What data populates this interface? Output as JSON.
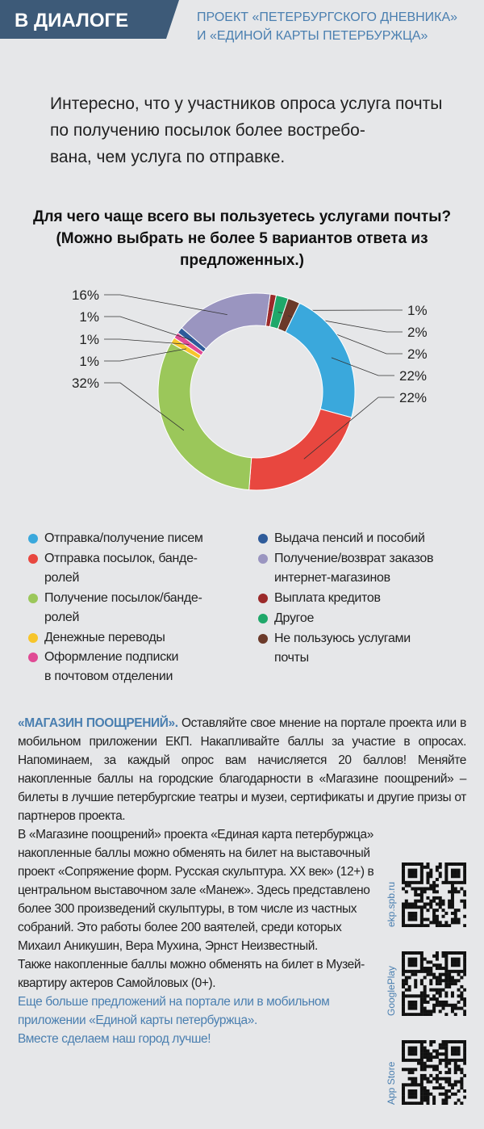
{
  "header": {
    "badge": "В ДИАЛОГЕ",
    "project": "ПРОЕКТ «ПЕТЕРБУРГСКОГО ДНЕВНИКА»\nИ «ЕДИНОЙ КАРТЫ ПЕТЕРБУРЖЦА»"
  },
  "intro": "Интересно, что у участников опроса услуга почты по получению посылок более востребо-\nвана, чем услуга по отправке.",
  "chart_data": {
    "type": "donut",
    "title": "Для чего чаще всего вы пользуетесь услугами почты? (Можно выбрать не более 5 вариантов ответа из предложенных.)",
    "categories": [
      "Отправка/получение писем",
      "Отправка посылок, банде-\nролей",
      "Получение посылок/банде-\nролей",
      "Денежные переводы",
      "Оформление подписки\nв почтовом отделении",
      "Выдача пенсий и пособий",
      "Получение/возврат заказов\nинтернет-магазинов",
      "Выплата кредитов",
      "Другое",
      "Не пользуюсь услугами\nпочты"
    ],
    "values": [
      22,
      22,
      32,
      1,
      1,
      1,
      16,
      1,
      2,
      2
    ],
    "value_labels": [
      "22%",
      "22%",
      "32%",
      "1%",
      "1%",
      "1%",
      "16%",
      "1%",
      "2%",
      "2%"
    ],
    "colors": [
      "#3aa8dc",
      "#e8473f",
      "#9bc75a",
      "#f7c52b",
      "#e04a94",
      "#2e5b9a",
      "#9a95c0",
      "#9b2a2a",
      "#1fa86a",
      "#6b3a2a"
    ]
  },
  "promo": {
    "heading": "«МАГАЗИН ПООЩРЕНИЙ».",
    "paragraphs": [
      "Оставляйте свое мнение на портале проекта или в мобильном приложении ЕКП. Накапливайте баллы за участие в опросах. Напоминаем, за каждый опрос вам начисляется 20 баллов! Меняйте накопленные баллы на городские благодарности в «Магазине поощрений» – билеты в лучшие петербургские театры и музеи, сертификаты и другие призы от партнеров проекта.",
      "В «Магазине поощрений» проекта «Единая карта петербуржца» накопленные баллы можно обменять на билет на выставочный проект «Сопряжение форм. Русская скульптура. XX век» (12+) в центральном выставочном зале «Манеж». Здесь представлено более 300 произведений скульптуры, в том числе из частных собраний. Это работы более 200 ваятелей, среди которых Михаил Аникушин, Вера Мухина, Эрнст Неизвестный.",
      "Также накопленные баллы можно обменять на билет в Музей-квартиру актеров Самойловых (0+)."
    ],
    "closing": [
      "Еще больше предложений на портале или в мобильном приложении «Единой карты петербуржца».",
      "Вместе сделаем наш город лучше!"
    ],
    "qr_labels": [
      "ekp.spb.ru",
      "GooglePlay",
      "App Store"
    ]
  }
}
